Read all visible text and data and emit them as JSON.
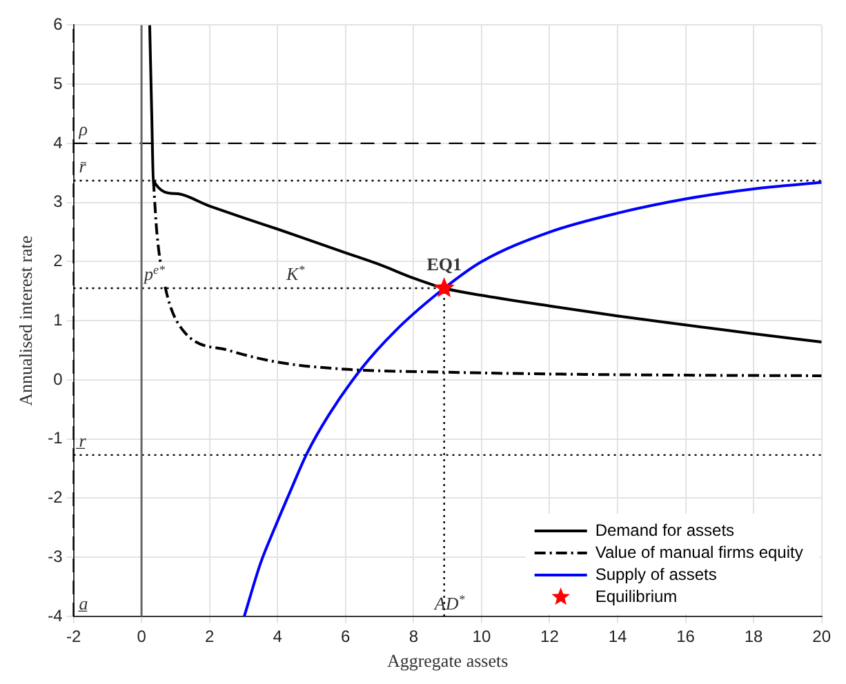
{
  "chart_data": {
    "type": "line",
    "xlabel": "Aggregate assets",
    "ylabel": "Annualised interest rate",
    "xlim": [
      -2,
      20
    ],
    "xticks": [
      -2,
      0,
      2,
      4,
      6,
      8,
      10,
      12,
      14,
      16,
      18,
      20
    ],
    "ylim": [
      -4,
      6
    ],
    "yticks": [
      -4,
      -3,
      -2,
      -1,
      0,
      1,
      2,
      3,
      4,
      5,
      6
    ],
    "grid": true,
    "legend": "bottom right",
    "series": [
      {
        "name": "Demand for assets",
        "color": "#000000",
        "line_style": "solid",
        "x": [
          0.24,
          0.3,
          0.35,
          1,
          2,
          3,
          4,
          5,
          6,
          7,
          8,
          8.9,
          10,
          12,
          14,
          16,
          18,
          20
        ],
        "values": [
          6,
          4.5,
          3.37,
          3.15,
          2.94,
          2.74,
          2.55,
          2.35,
          2.15,
          1.95,
          1.72,
          1.55,
          1.43,
          1.25,
          1.08,
          0.93,
          0.78,
          0.64
        ]
      },
      {
        "name": "Value of manual firms equity",
        "color": "#000000",
        "line_style": "dashdot",
        "x": [
          0.35,
          0.45,
          0.7,
          1.23,
          2.56,
          4,
          6,
          9,
          12,
          16,
          20
        ],
        "values": [
          3.37,
          2.5,
          1.56,
          0.83,
          0.5,
          0.3,
          0.18,
          0.13,
          0.1,
          0.08,
          0.07
        ]
      },
      {
        "name": "Supply of assets",
        "color": "#0000ff",
        "line_style": "solid",
        "x": [
          3.02,
          3.5,
          3.92,
          4.4,
          4.86,
          5.5,
          6.48,
          7.5,
          8.9,
          10,
          12,
          14,
          16,
          18,
          20
        ],
        "values": [
          -4,
          -3.1,
          -2.5,
          -1.85,
          -1.25,
          -0.6,
          0.2,
          0.85,
          1.55,
          2.0,
          2.5,
          2.82,
          3.06,
          3.23,
          3.34
        ]
      },
      {
        "name": "Equilibrium",
        "type": "scatter",
        "color": "#ff0000",
        "marker": "star",
        "x": [
          8.9
        ],
        "values": [
          1.55
        ]
      }
    ],
    "ref_lines": [
      {
        "axis": "y",
        "value": 4,
        "label": "ρ",
        "line_style": "dashed",
        "color": "#000000"
      },
      {
        "axis": "y",
        "value": 3.37,
        "label": "r̄",
        "line_style": "dotted",
        "color": "#000000"
      },
      {
        "axis": "y",
        "value": 1.55,
        "label": "K$^{*}$",
        "line_style": "dotted",
        "color": "#000000"
      },
      {
        "axis": "y",
        "value": -1.27,
        "label": "r̲",
        "line_style": "dotted",
        "color": "#000000"
      },
      {
        "axis": "x",
        "value": -2,
        "label": "a̲",
        "line_style": "dashed",
        "color": "#000000"
      },
      {
        "axis": "x",
        "value": 0,
        "line_style": "solid",
        "color": "#666666"
      },
      {
        "axis": "x",
        "value": 8.9,
        "label": "AD$^{*}$",
        "line_style": "dotted",
        "color": "#000000"
      }
    ],
    "annotations": [
      {
        "text": "EQ1",
        "x": 8.9,
        "y": 1.55
      },
      {
        "text": "p$^{e*}$",
        "x": 0,
        "y": 1.55
      }
    ]
  }
}
